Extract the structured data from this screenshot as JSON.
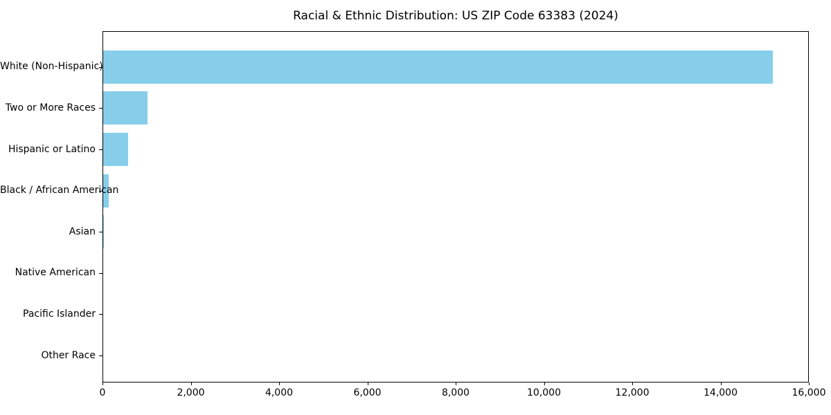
{
  "chart_data": {
    "type": "bar",
    "orientation": "horizontal",
    "title": "Racial & Ethnic Distribution: US ZIP Code 63383 (2024)",
    "categories": [
      "White (Non-Hispanic)",
      "Two or More Races",
      "Hispanic or Latino",
      "Black / African American",
      "Asian",
      "Native American",
      "Pacific Islander",
      "Other Race"
    ],
    "values": [
      15200,
      1000,
      570,
      125,
      20,
      0,
      0,
      0
    ],
    "xlim": [
      0,
      16000
    ],
    "x_ticks": [
      0,
      2000,
      4000,
      6000,
      8000,
      10000,
      12000,
      14000,
      16000
    ],
    "x_tick_labels": [
      "0",
      "2,000",
      "4,000",
      "6,000",
      "8,000",
      "10,000",
      "12,000",
      "14,000",
      "16,000"
    ],
    "xlabel": "",
    "ylabel": "",
    "legend": null,
    "grid": false,
    "bar_color": "#87CEEB",
    "axis_color": "#000000",
    "background_color": "#ffffff"
  }
}
